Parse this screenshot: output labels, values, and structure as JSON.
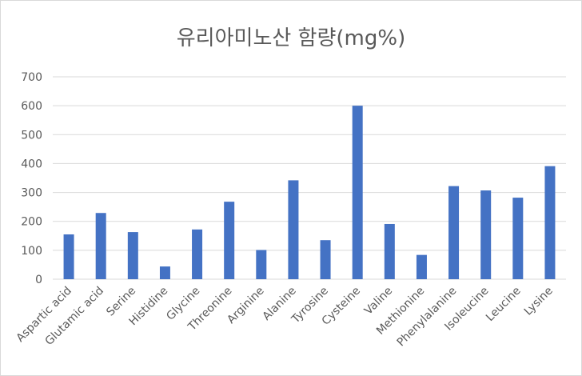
{
  "chart_data": {
    "type": "bar",
    "title": "유리아미노산 함량(mg%)",
    "xlabel": "",
    "ylabel": "",
    "ylim": [
      0,
      700
    ],
    "yticks": [
      0,
      100,
      200,
      300,
      400,
      500,
      600,
      700
    ],
    "grid": true,
    "legend": "none",
    "bar_color": "#4472c4",
    "categories": [
      "Aspartic acid",
      "Glutamic acid",
      "Serine",
      "Histidine",
      "Glycine",
      "Threonine",
      "Arginine",
      "Alanine",
      "Tyrosine",
      "Cysteine",
      "Valine",
      "Methionine",
      "Phenylalanine",
      "Isoleucine",
      "Leucine",
      "Lysine"
    ],
    "values": [
      155,
      229,
      163,
      44,
      172,
      268,
      101,
      342,
      135,
      600,
      191,
      84,
      322,
      307,
      282,
      391
    ]
  }
}
